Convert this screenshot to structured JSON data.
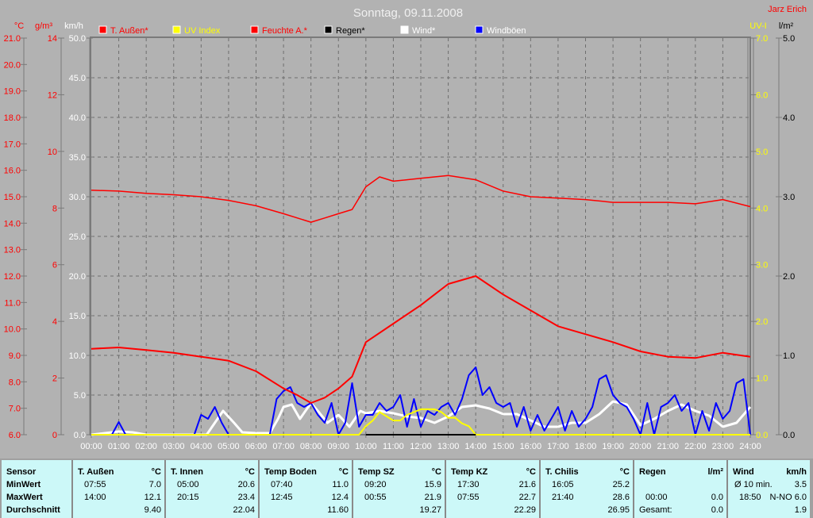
{
  "title": "Sonntag, 09.11.2008",
  "author": "Jarz Erich",
  "colors": {
    "background": "#b2b2b2",
    "grid": "#7a7a7a",
    "temp": "#ff0000",
    "humidity": "#ff0000",
    "uv": "#ffff00",
    "rain": "#000000",
    "wind": "#ffffff",
    "gusts": "#0000ff",
    "table_bg": "#ccf8f8"
  },
  "chart_data": {
    "type": "line",
    "title": "Sonntag, 09.11.2008",
    "legend_placement": "top",
    "grid": true,
    "x_ticks": [
      "00:00",
      "01:00",
      "02:00",
      "03:00",
      "04:00",
      "05:00",
      "06:00",
      "07:00",
      "08:00",
      "09:00",
      "10:00",
      "11:00",
      "12:00",
      "13:00",
      "14:00",
      "15:00",
      "16:00",
      "17:00",
      "18:00",
      "19:00",
      "20:00",
      "21:00",
      "22:00",
      "23:00",
      "24:00"
    ],
    "axes": {
      "temp": {
        "unit": "°C",
        "range": [
          6,
          21
        ],
        "ticks": [
          "6.0",
          "7.0",
          "8.0",
          "9.0",
          "10.0",
          "11.0",
          "12.0",
          "13.0",
          "14.0",
          "15.0",
          "16.0",
          "17.0",
          "18.0",
          "19.0",
          "20.0",
          "21.0"
        ]
      },
      "humidity": {
        "unit": "g/m³",
        "range": [
          0,
          14
        ],
        "ticks": [
          "0",
          "2",
          "4",
          "6",
          "8",
          "10",
          "12",
          "14"
        ]
      },
      "wind": {
        "unit": "km/h",
        "range": [
          0,
          50
        ],
        "ticks": [
          "0.0",
          "5.0",
          "10.0",
          "15.0",
          "20.0",
          "25.0",
          "30.0",
          "35.0",
          "40.0",
          "45.0",
          "50.0"
        ]
      },
      "uv": {
        "unit": "UV-I",
        "range": [
          0,
          7
        ],
        "ticks": [
          "0.0",
          "1.0",
          "2.0",
          "3.0",
          "4.0",
          "5.0",
          "6.0",
          "7.0"
        ]
      },
      "rain": {
        "unit": "l/m²",
        "range": [
          0,
          5
        ],
        "ticks": [
          "0.0",
          "1.0",
          "2.0",
          "3.0",
          "4.0",
          "5.0"
        ]
      }
    },
    "series": [
      {
        "name": "T. Außen*",
        "axis": "temp",
        "color": "#ff0000",
        "x": [
          0,
          1,
          2,
          3,
          4,
          5,
          6,
          7,
          7.5,
          8,
          8.5,
          9,
          9.5,
          10,
          11,
          12,
          12.5,
          13,
          14,
          15,
          16,
          17,
          18,
          19,
          20,
          21,
          22,
          23,
          24
        ],
        "y": [
          9.25,
          9.3,
          9.2,
          9.1,
          8.95,
          8.8,
          8.4,
          7.75,
          7.5,
          7.2,
          7.4,
          7.75,
          8.2,
          9.5,
          10.2,
          10.9,
          11.3,
          11.7,
          12.0,
          11.3,
          10.7,
          10.1,
          9.8,
          9.5,
          9.15,
          8.95,
          8.9,
          9.1,
          8.95
        ]
      },
      {
        "name": "UV Index",
        "axis": "uv",
        "color": "#ffff00",
        "x": [
          0,
          9.75,
          10,
          10.25,
          10.5,
          11,
          11.25,
          11.5,
          12,
          12.25,
          12.5,
          12.75,
          13,
          13.25,
          13.5,
          13.75,
          14,
          24
        ],
        "y": [
          0,
          0,
          0.15,
          0.25,
          0.4,
          0.25,
          0.25,
          0.35,
          0.45,
          0.45,
          0.45,
          0.4,
          0.3,
          0.3,
          0.2,
          0.15,
          0,
          0
        ]
      },
      {
        "name": "Feuchte A.*",
        "axis": "humidity",
        "color": "#ff0000",
        "x": [
          0,
          1,
          2,
          3,
          4,
          5,
          6,
          7,
          8,
          8.5,
          9,
          9.5,
          10,
          10.5,
          11,
          12,
          13,
          14,
          15,
          16,
          17,
          18,
          19,
          20,
          21,
          22,
          23,
          24
        ],
        "y": [
          8.63,
          8.6,
          8.52,
          8.47,
          8.4,
          8.27,
          8.08,
          7.8,
          7.5,
          7.65,
          7.8,
          7.95,
          8.75,
          9.1,
          8.95,
          9.05,
          9.15,
          9.0,
          8.6,
          8.4,
          8.35,
          8.3,
          8.2,
          8.2,
          8.2,
          8.15,
          8.3,
          8.05
        ]
      },
      {
        "name": "Regen*",
        "axis": "rain",
        "color": "#000000",
        "x": [
          10,
          14
        ],
        "y": [
          0,
          0
        ]
      },
      {
        "name": "Wind*",
        "axis": "wind",
        "color": "#ffffff",
        "x": [
          0,
          0.5,
          1,
          1.5,
          2,
          4.2,
          4.5,
          4.8,
          5.2,
          5.5,
          6,
          6.5,
          6.8,
          7,
          7.3,
          7.6,
          8,
          8.3,
          8.6,
          9,
          9.4,
          9.8,
          10,
          10.5,
          11,
          11.5,
          12,
          12.5,
          13,
          13.5,
          14,
          14.5,
          15,
          15.5,
          16,
          16.5,
          17,
          17.5,
          18,
          18.5,
          19,
          19.5,
          20,
          20.5,
          21,
          21.5,
          22,
          22.5,
          23,
          23.5,
          24
        ],
        "y": [
          0,
          0.2,
          0.4,
          0.3,
          0,
          0,
          1.5,
          3.0,
          1.5,
          0.3,
          0.2,
          0.2,
          2.0,
          3.5,
          3.8,
          2.0,
          4.0,
          2.8,
          1.5,
          2.5,
          1.0,
          3.0,
          2.7,
          3.0,
          2.7,
          2.3,
          2.1,
          1.5,
          2.3,
          3.5,
          3.7,
          3.3,
          2.6,
          2.6,
          1.8,
          1.0,
          1.0,
          1.5,
          1.5,
          2.6,
          4.2,
          3.8,
          1.2,
          2.0,
          3.0,
          3.8,
          3.0,
          2.4,
          1.0,
          1.5,
          3.5
        ]
      },
      {
        "name": "Windböen",
        "axis": "wind",
        "color": "#0000ff",
        "step": 0.25,
        "y": [
          0,
          0,
          0,
          0,
          1.6,
          0,
          0,
          0,
          0,
          0,
          0,
          0,
          0,
          0,
          0,
          0,
          2.5,
          2.0,
          3.5,
          1.5,
          0,
          0,
          0,
          0,
          0,
          0,
          0,
          4.5,
          5.5,
          6.0,
          4.0,
          3.5,
          4.0,
          2.5,
          1.5,
          4.0,
          0,
          1.5,
          6.5,
          1.0,
          2.5,
          2.5,
          4.0,
          3.0,
          3.5,
          5.0,
          1.0,
          4.5,
          1.0,
          3.0,
          2.5,
          3.5,
          4.0,
          2.5,
          4.5,
          7.5,
          8.5,
          5.0,
          6.0,
          4.0,
          3.5,
          4.0,
          1.0,
          3.5,
          0.5,
          2.5,
          0.5,
          2.0,
          3.5,
          0.5,
          3.0,
          1.0,
          2.0,
          3.5,
          7.0,
          7.5,
          5.0,
          4.0,
          3.5,
          2.0,
          0,
          4.0,
          0,
          3.5,
          4.0,
          5.0,
          3.0,
          4.0,
          0,
          3.0,
          0.5,
          4.0,
          2.0,
          3.0,
          6.5,
          7.0,
          0
        ]
      }
    ]
  },
  "table": {
    "row_labels": [
      "Sensor",
      "MinWert",
      "MaxWert",
      "Durchschnitt"
    ],
    "columns": [
      {
        "name": "T. Außen",
        "unit": "°C",
        "min_time": "07:55",
        "min": "7.0",
        "max_time": "14:00",
        "max": "12.1",
        "avg": "9.40"
      },
      {
        "name": "T. Innen",
        "unit": "°C",
        "min_time": "05:00",
        "min": "20.6",
        "max_time": "20:15",
        "max": "23.4",
        "avg": "22.04"
      },
      {
        "name": "Temp Boden",
        "unit": "°C",
        "min_time": "07:40",
        "min": "11.0",
        "max_time": "12:45",
        "max": "12.4",
        "avg": "11.60"
      },
      {
        "name": "Temp SZ",
        "unit": "°C",
        "min_time": "09:20",
        "min": "15.9",
        "max_time": "00:55",
        "max": "21.9",
        "avg": "19.27"
      },
      {
        "name": "Temp KZ",
        "unit": "°C",
        "min_time": "17:30",
        "min": "21.6",
        "max_time": "07:55",
        "max": "22.7",
        "avg": "22.29"
      },
      {
        "name": "T. Chilis",
        "unit": "°C",
        "min_time": "16:05",
        "min": "25.2",
        "max_time": "21:40",
        "max": "28.6",
        "avg": "26.95"
      },
      {
        "name": "Regen",
        "unit": "l/m²",
        "min_time": "",
        "min": "",
        "max_time": "00:00",
        "max": "0.0",
        "avg_label": "Gesamt:",
        "avg": "0.0"
      },
      {
        "name": "Wind",
        "unit": "km/h",
        "min_time": "Ø 10 min.",
        "min": "3.5",
        "max_time": "18:50",
        "max": "N-NO 6.0",
        "avg": "1.9"
      }
    ]
  }
}
